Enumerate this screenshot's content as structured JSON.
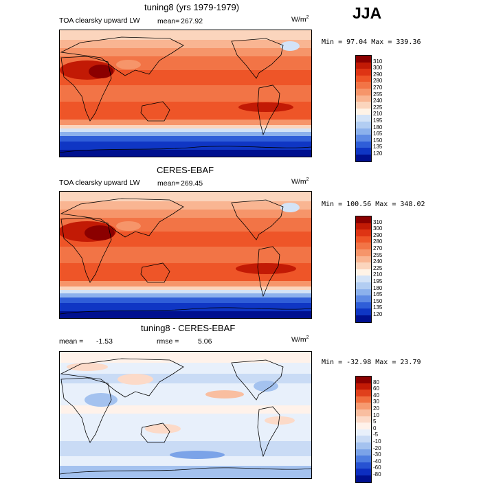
{
  "season": "JJA",
  "panels": [
    {
      "title": "tuning8 (yrs 1979-1979)",
      "variable": "TOA clearsky upward LW",
      "mean_text": "mean=",
      "mean_value": "267.92",
      "units_base": "W/m",
      "units_exp": "2",
      "minmax": "Min =  97.04 Max = 339.36",
      "levels": [
        "310",
        "300",
        "290",
        "280",
        "270",
        "255",
        "240",
        "225",
        "210",
        "195",
        "180",
        "165",
        "150",
        "135",
        "120"
      ],
      "colors": [
        "#8b0000",
        "#c21a05",
        "#de3414",
        "#ee5528",
        "#f27446",
        "#f6956a",
        "#f9b592",
        "#fbd5bd",
        "#fff3e6",
        "#d3e3f7",
        "#b2cdf2",
        "#8cb1ec",
        "#5e8ae4",
        "#2f5ed8",
        "#0f36c4",
        "#00108f"
      ]
    },
    {
      "title": "CERES-EBAF",
      "variable": "TOA clearsky upward LW",
      "mean_text": "mean=",
      "mean_value": "269.45",
      "units_base": "W/m",
      "units_exp": "2",
      "minmax": "Min = 100.56 Max = 348.02",
      "levels": [
        "310",
        "300",
        "290",
        "280",
        "270",
        "255",
        "240",
        "225",
        "210",
        "195",
        "180",
        "165",
        "150",
        "135",
        "120"
      ],
      "colors": [
        "#8b0000",
        "#c21a05",
        "#de3414",
        "#ee5528",
        "#f27446",
        "#f6956a",
        "#f9b592",
        "#fbd5bd",
        "#fff3e6",
        "#d3e3f7",
        "#b2cdf2",
        "#8cb1ec",
        "#5e8ae4",
        "#2f5ed8",
        "#0f36c4",
        "#00108f"
      ]
    },
    {
      "title": "tuning8 - CERES-EBAF",
      "mean_label": "mean =",
      "mean_value": "-1.53",
      "rmse_label": "rmse =",
      "rmse_value": "5.06",
      "units_base": "W/m",
      "units_exp": "2",
      "minmax": "Min = -32.98 Max =  23.79",
      "levels": [
        "80",
        "60",
        "40",
        "30",
        "20",
        "10",
        "5",
        "0",
        "-5",
        "-10",
        "-20",
        "-30",
        "-40",
        "-60",
        "-80"
      ],
      "colors": [
        "#8b0000",
        "#c21a05",
        "#e0401b",
        "#f06e3e",
        "#f69a70",
        "#f9bea0",
        "#fcdac8",
        "#fff2ea",
        "#e8f0fb",
        "#c9dbf5",
        "#a4c2ef",
        "#7ba3e8",
        "#4e7de0",
        "#2752d2",
        "#0d2ec0",
        "#00108f"
      ]
    }
  ]
}
